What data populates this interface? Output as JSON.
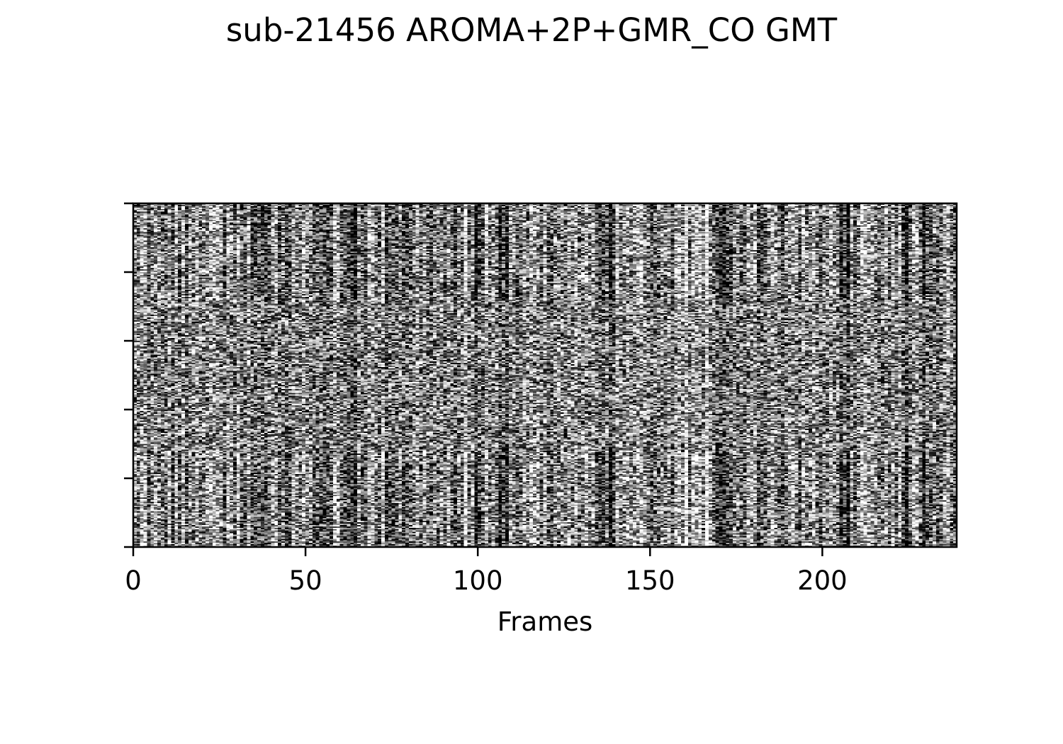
{
  "chart_data": {
    "type": "heatmap",
    "title": "sub-21456 AROMA+2P+GMR_CO GMT",
    "xlabel": "Frames",
    "ylabel": "",
    "xlim": [
      0,
      239
    ],
    "x_ticks": [
      0,
      50,
      100,
      150,
      200
    ],
    "x_tick_labels": [
      "0",
      "50",
      "100",
      "150",
      "200"
    ],
    "y_tick_count": 6,
    "y_tick_labels": [],
    "colormap": "gray",
    "n_frames": 239,
    "n_rows": 250,
    "grid": false,
    "legend": "none",
    "dark_frame_bands": [
      63,
      74,
      100,
      107,
      137,
      170,
      206,
      224,
      230,
      233
    ],
    "bright_frame_bands": [
      12,
      33,
      74,
      96,
      160,
      166,
      230,
      232
    ]
  }
}
